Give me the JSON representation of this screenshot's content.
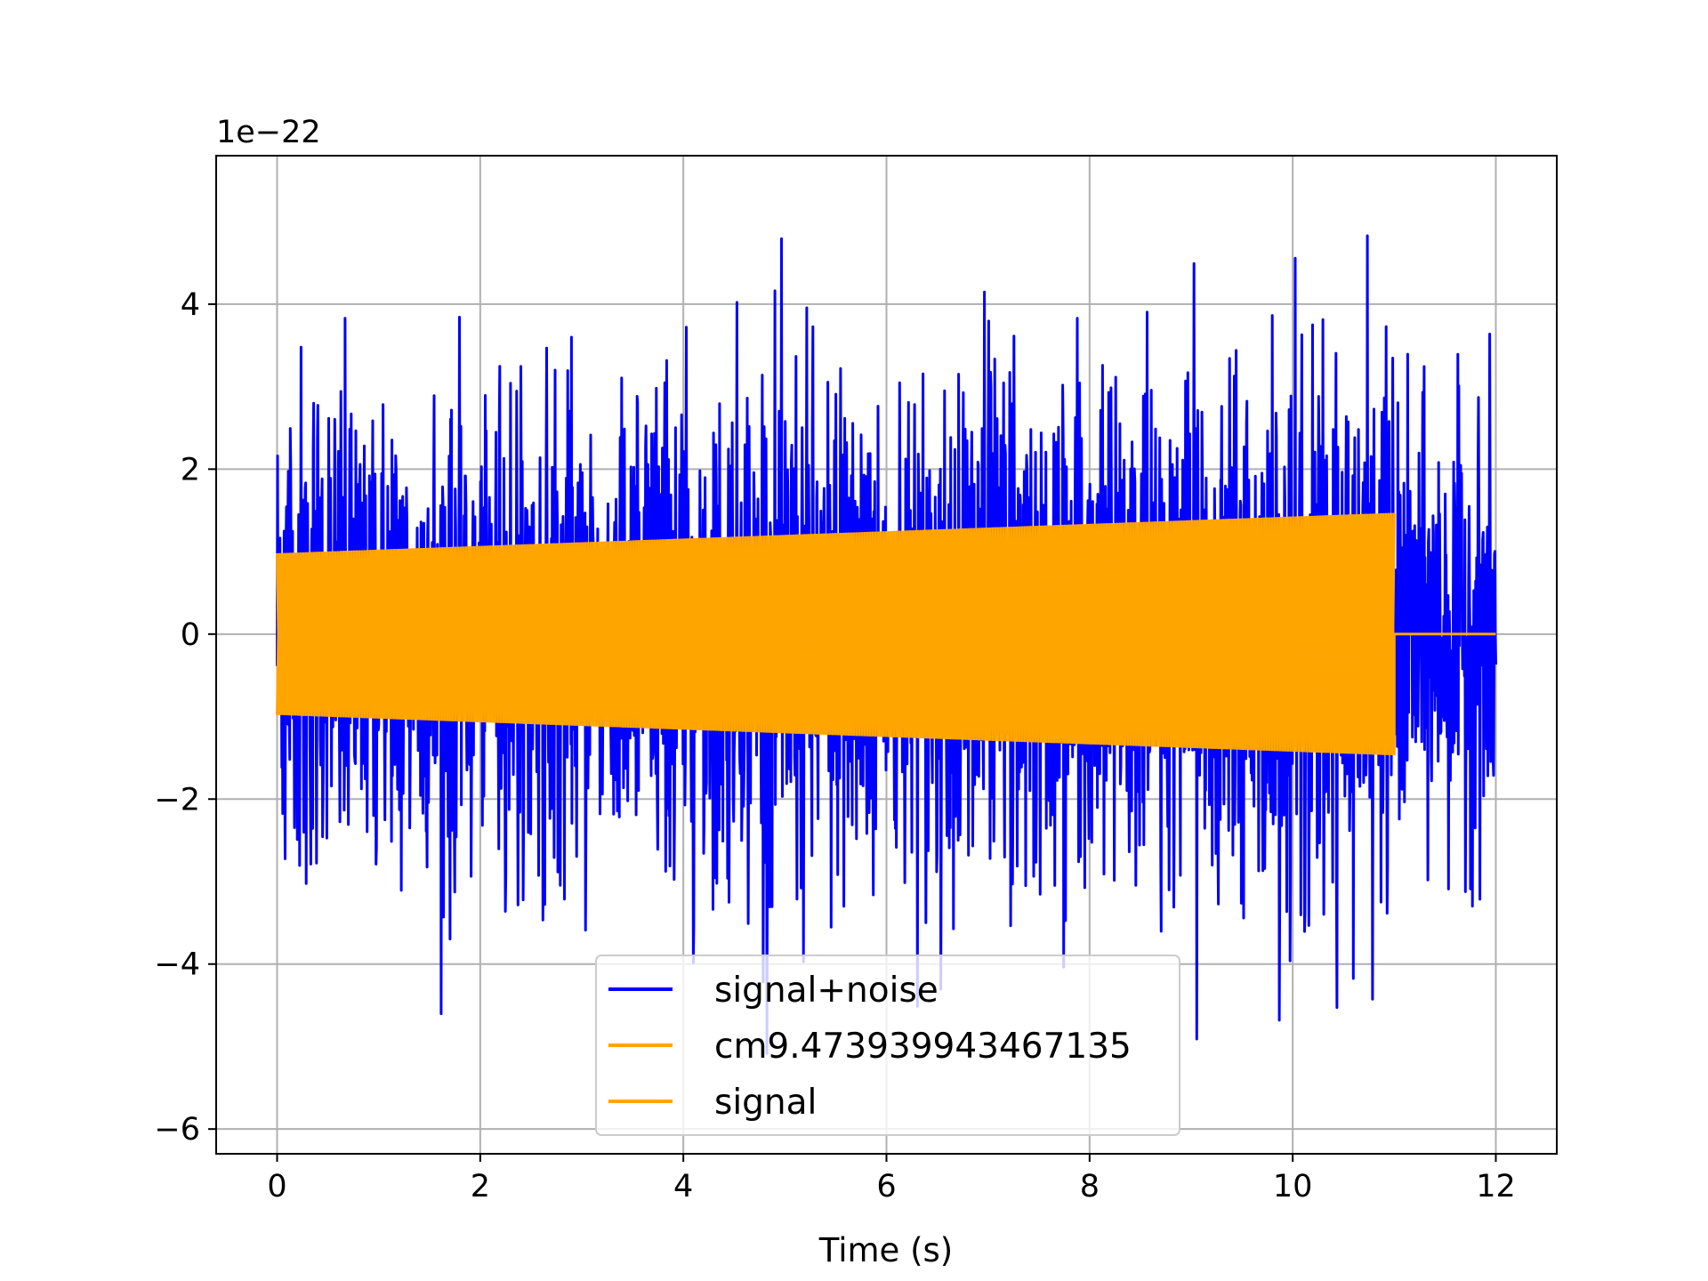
{
  "chart_data": {
    "type": "line",
    "title": "",
    "xlabel": "Time (s)",
    "ylabel": "",
    "y_offset_text": "1e−22",
    "y_scale_factor": 1e-22,
    "xlim": [
      -0.6,
      12.6
    ],
    "ylim": [
      -6.3,
      5.8
    ],
    "x_ticks": [
      0,
      2,
      4,
      6,
      8,
      10,
      12
    ],
    "x_tick_labels": [
      "0",
      "2",
      "4",
      "6",
      "8",
      "10",
      "12"
    ],
    "y_ticks": [
      -6,
      -4,
      -2,
      0,
      2,
      4
    ],
    "y_tick_labels": [
      "−6",
      "−4",
      "−2",
      "0",
      "2",
      "4"
    ],
    "grid": true,
    "legend_position": "lower center",
    "series": [
      {
        "name": "signal+noise",
        "color": "#0000ff",
        "x_range": [
          0,
          12
        ],
        "description_values": {
          "noise_rms": 1.25,
          "max": 5.2,
          "min": -5.7
        }
      },
      {
        "name": "cm9.473939943467135",
        "color": "#ffa500",
        "x_range": [
          0,
          11
        ],
        "envelope_start": 0.98,
        "envelope_end": 1.47
      },
      {
        "name": "signal",
        "color": "#ffa500",
        "x_range": [
          0,
          12
        ],
        "nonzero_until": 11,
        "envelope_start": 0.98,
        "envelope_end": 1.47
      }
    ]
  }
}
